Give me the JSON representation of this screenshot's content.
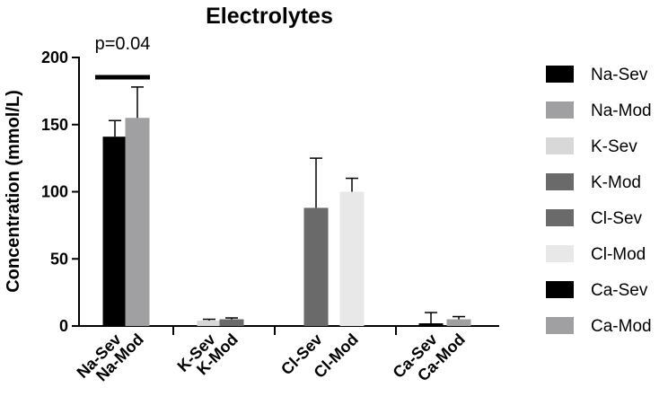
{
  "chart_data": {
    "type": "bar",
    "title": "Electrolytes",
    "ylabel": "Concentration (mmol/L)",
    "xlabel": "",
    "ylim": [
      0,
      200
    ],
    "yticks": [
      0,
      50,
      100,
      150,
      200
    ],
    "grid": false,
    "legend_position": "right",
    "categories": [
      "Na-Sev",
      "Na-Mod",
      "K-Sev",
      "K-Mod",
      "Cl-Sev",
      "Cl-Mod",
      "Ca-Sev",
      "Ca-Mod"
    ],
    "values": [
      141,
      155,
      4,
      5,
      88,
      100,
      2,
      5
    ],
    "errors": [
      12,
      23,
      1,
      1,
      37,
      10,
      8,
      2
    ],
    "colors": [
      "#000000",
      "#a0a0a2",
      "#d8d8d8",
      "#6a6a6a",
      "#6a6a6a",
      "#e8e8e8",
      "#000000",
      "#a0a0a2"
    ],
    "groups": [
      [
        "Na-Sev",
        "Na-Mod"
      ],
      [
        "K-Sev",
        "K-Mod"
      ],
      [
        "Cl-Sev",
        "Cl-Mod"
      ],
      [
        "Ca-Sev",
        "Ca-Mod"
      ]
    ],
    "annotations": [
      {
        "text": "p=0.04",
        "between": [
          "Na-Sev",
          "Na-Mod"
        ]
      }
    ]
  }
}
